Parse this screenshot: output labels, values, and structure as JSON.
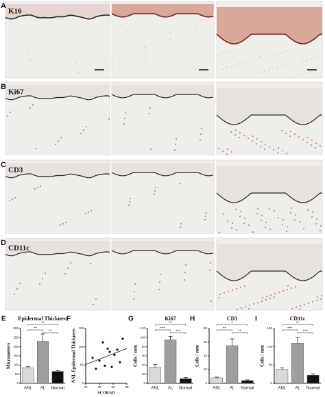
{
  "panels": [
    {
      "label": "A",
      "stain": "K16"
    },
    {
      "label": "B",
      "stain": "Ki67"
    },
    {
      "label": "C",
      "stain": "CD3"
    },
    {
      "label": "D",
      "stain": "CD11c"
    }
  ],
  "chart_data": [
    {
      "type": "bar",
      "label": "E",
      "title": "Epidermal Thickness",
      "ylabel": "Micrometers",
      "categories": [
        "ANL",
        "AL",
        "Normal"
      ],
      "values": [
        85,
        230,
        65
      ],
      "errors": [
        6,
        40,
        5
      ],
      "colors": [
        "#d9d9d9",
        "#9e9e9e",
        "#111111"
      ],
      "ylim": [
        0,
        300
      ],
      "yticks": [
        0,
        50,
        100,
        150,
        200,
        250,
        300
      ],
      "significance": [
        {
          "from": 0,
          "to": 1,
          "label": "**"
        },
        {
          "from": 0,
          "to": 2,
          "label": "**"
        },
        {
          "from": 1,
          "to": 2,
          "label": "**"
        }
      ]
    },
    {
      "type": "scatter",
      "label": "F",
      "ylabel": "ANL Epidermal Thickness",
      "xlabel": "SCORAD",
      "x": [
        30,
        35,
        40,
        45,
        48,
        52,
        55,
        58,
        62,
        66,
        70,
        74
      ],
      "y": [
        70,
        40,
        62,
        112,
        48,
        95,
        86,
        45,
        78,
        92,
        58,
        122
      ],
      "color": "#111111",
      "xlim": [
        20,
        80
      ],
      "xticks": [
        20,
        40,
        60,
        80
      ],
      "ylim": [
        0,
        150
      ],
      "yticks": [
        0,
        50,
        100,
        150
      ]
    },
    {
      "type": "bar",
      "label": "G",
      "title": "Ki67",
      "ylabel": "Cells / mm",
      "categories": [
        "ANL",
        "AL",
        "Normal"
      ],
      "values": [
        35,
        95,
        10
      ],
      "errors": [
        6,
        8,
        3
      ],
      "colors": [
        "#d9d9d9",
        "#9e9e9e",
        "#111111"
      ],
      "ylim": [
        0,
        120
      ],
      "yticks": [
        0,
        20,
        40,
        60,
        80,
        100,
        120
      ],
      "significance": [
        {
          "from": 0,
          "to": 1,
          "label": "***"
        },
        {
          "from": 0,
          "to": 2,
          "label": "**"
        },
        {
          "from": 1,
          "to": 2,
          "label": "***"
        }
      ]
    },
    {
      "type": "bar",
      "label": "H",
      "title": "CD3",
      "ylabel": "Cells / mm",
      "categories": [
        "ANL",
        "AL",
        "Normal"
      ],
      "values": [
        8,
        55,
        4
      ],
      "errors": [
        1,
        10,
        1
      ],
      "colors": [
        "#d9d9d9",
        "#9e9e9e",
        "#111111"
      ],
      "ylim": [
        0,
        80
      ],
      "yticks": [
        0,
        20,
        40,
        60,
        80
      ],
      "significance": [
        {
          "from": 0,
          "to": 1,
          "label": "**"
        },
        {
          "from": 0,
          "to": 2,
          "label": "*"
        },
        {
          "from": 1,
          "to": 2,
          "label": "**"
        }
      ]
    },
    {
      "type": "bar",
      "label": "I",
      "title": "CD11c",
      "ylabel": "Cells / mm",
      "categories": [
        "ANL",
        "AL",
        "Normal"
      ],
      "values": [
        38,
        110,
        22
      ],
      "errors": [
        4,
        15,
        4
      ],
      "colors": [
        "#d9d9d9",
        "#9e9e9e",
        "#111111"
      ],
      "ylim": [
        0,
        150
      ],
      "yticks": [
        0,
        50,
        100,
        150
      ],
      "significance": [
        {
          "from": 0,
          "to": 1,
          "label": "***"
        },
        {
          "from": 0,
          "to": 2,
          "label": "**"
        },
        {
          "from": 1,
          "to": 2,
          "label": "***"
        }
      ]
    }
  ]
}
